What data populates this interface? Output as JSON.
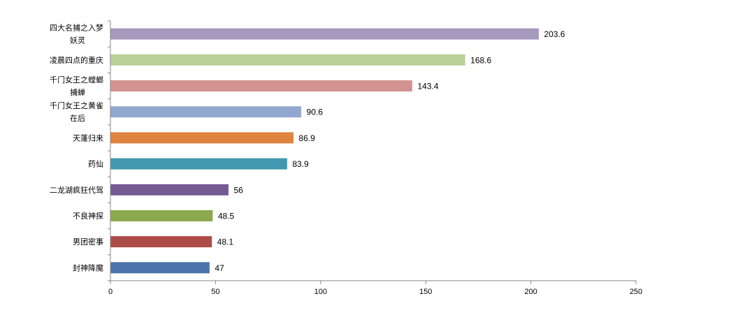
{
  "chart_data": {
    "type": "bar",
    "orientation": "horizontal",
    "title": "",
    "xlabel": "",
    "ylabel": "",
    "xlim": [
      0,
      250
    ],
    "ticks": [
      "0",
      "50",
      "100",
      "150",
      "200",
      "250"
    ],
    "grid": false,
    "legend": "none",
    "bars": [
      {
        "lines": [
          "四大名捕之入梦",
          "妖灵"
        ],
        "value": 203.6,
        "label": "203.6",
        "color": "#a599bd"
      },
      {
        "lines": [
          "凌晨四点的重庆"
        ],
        "value": 168.6,
        "label": "168.6",
        "color": "#bbd19a"
      },
      {
        "lines": [
          "千门女王之螳螂",
          "捕蝉"
        ],
        "value": 143.4,
        "label": "143.4",
        "color": "#d49390"
      },
      {
        "lines": [
          "千门女王之黄雀",
          "在后"
        ],
        "value": 90.6,
        "label": "90.6",
        "color": "#93a8d0"
      },
      {
        "lines": [
          "天蓬归来"
        ],
        "value": 86.9,
        "label": "86.9",
        "color": "#df843f"
      },
      {
        "lines": [
          "药仙"
        ],
        "value": 83.9,
        "label": "83.9",
        "color": "#4298ae"
      },
      {
        "lines": [
          "二龙湖疯狂代驾"
        ],
        "value": 56,
        "label": "56",
        "color": "#735a93"
      },
      {
        "lines": [
          "不良神探"
        ],
        "value": 48.5,
        "label": "48.5",
        "color": "#8ca94f"
      },
      {
        "lines": [
          "男团密事"
        ],
        "value": 48.1,
        "label": "48.1",
        "color": "#ad4b47"
      },
      {
        "lines": [
          "封神降魔"
        ],
        "value": 47,
        "label": "47",
        "color": "#4a74ab"
      }
    ]
  }
}
